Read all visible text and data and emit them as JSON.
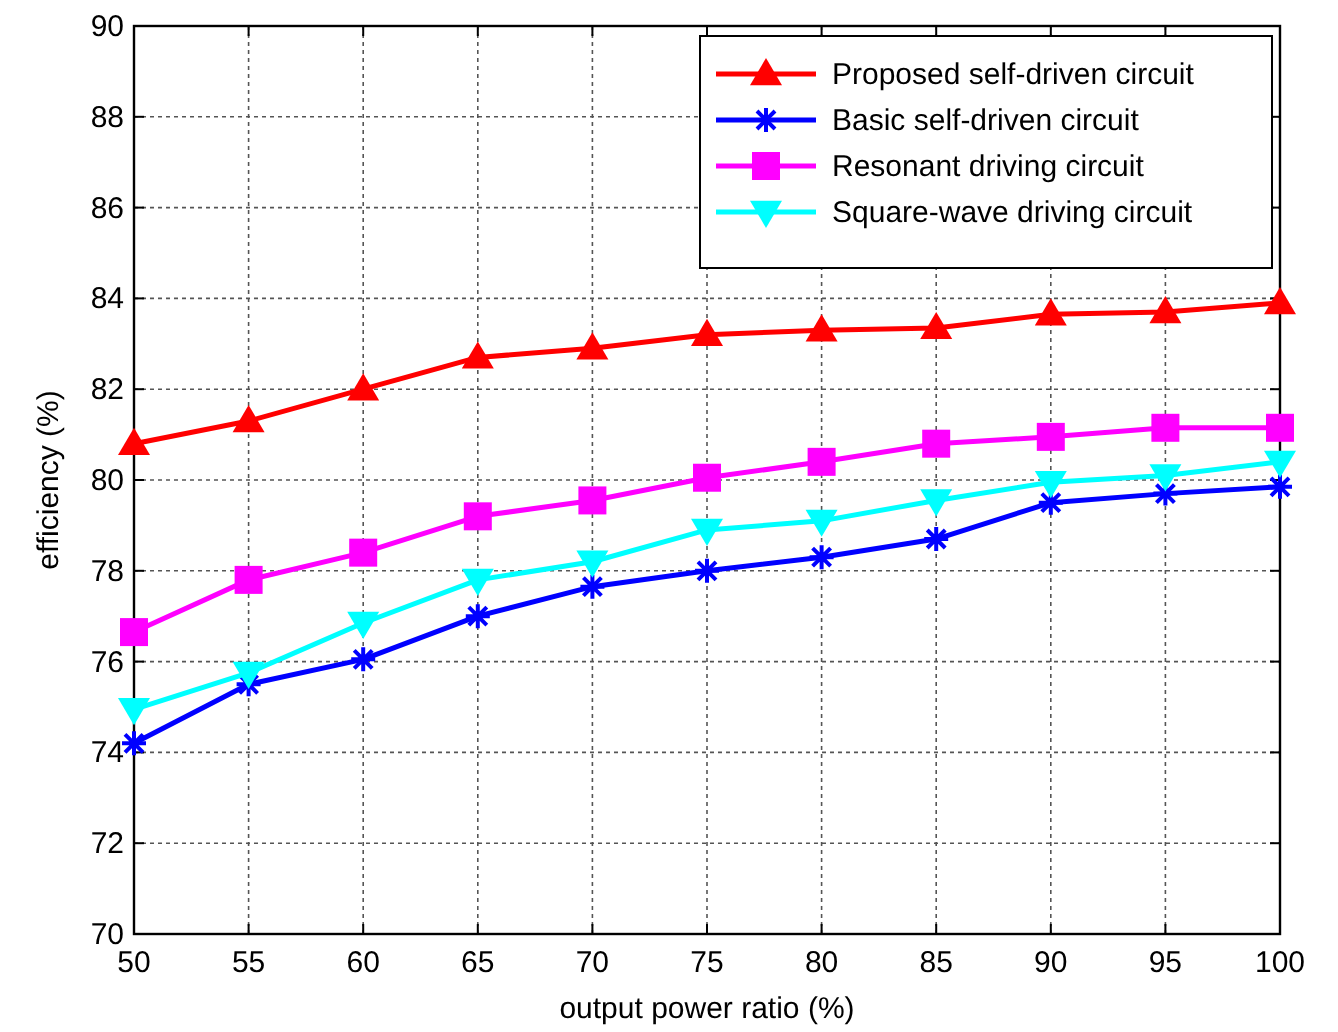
{
  "chart_data": {
    "type": "line",
    "xlabel": "output power ratio (%)",
    "ylabel": "efficiency (%)",
    "x": [
      50,
      55,
      60,
      65,
      70,
      75,
      80,
      85,
      90,
      95,
      100
    ],
    "xlim": [
      50,
      100
    ],
    "xticks": [
      50,
      55,
      60,
      65,
      70,
      75,
      80,
      85,
      90,
      95,
      100
    ],
    "ylim": [
      70,
      90
    ],
    "yticks": [
      70,
      72,
      74,
      76,
      78,
      80,
      82,
      84,
      86,
      88,
      90
    ],
    "grid": true,
    "legend": "top right",
    "line_style": "solid",
    "series": [
      {
        "name": "Proposed self-driven circuit",
        "color": "#ff0000",
        "marker": "triangle",
        "values": [
          80.8,
          81.3,
          82.0,
          82.7,
          82.9,
          83.2,
          83.3,
          83.35,
          83.65,
          83.7,
          83.9
        ]
      },
      {
        "name": "Basic self-driven circuit",
        "color": "#0000ff",
        "marker": "cross",
        "values": [
          74.2,
          75.5,
          76.05,
          77.0,
          77.65,
          78.0,
          78.3,
          78.7,
          79.5,
          79.7,
          79.85
        ]
      },
      {
        "name": "Resonant driving circuit",
        "color": "#ff00ff",
        "marker": "square",
        "values": [
          76.65,
          77.8,
          78.4,
          79.2,
          79.55,
          80.05,
          80.4,
          80.8,
          80.95,
          81.15,
          81.15
        ]
      },
      {
        "name": "Square-wave driving circuit",
        "color": "#00ffff",
        "marker": "triangle-down",
        "values": [
          74.95,
          75.75,
          76.85,
          77.8,
          78.2,
          78.9,
          79.1,
          79.55,
          79.95,
          80.1,
          80.4
        ]
      }
    ]
  }
}
